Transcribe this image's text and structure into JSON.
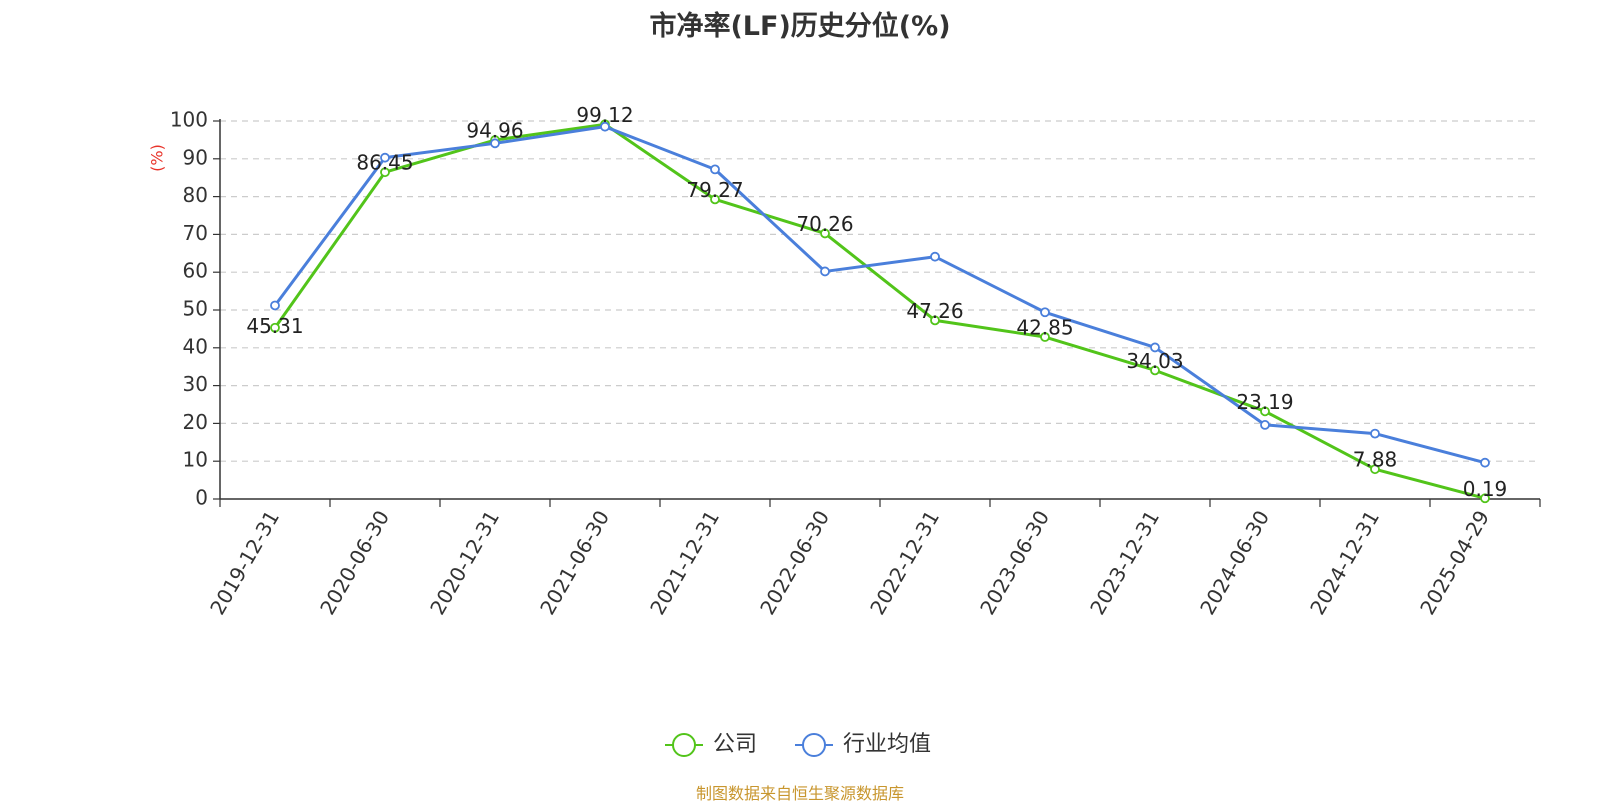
{
  "chart_data": {
    "type": "line",
    "title": "市净率(LF)历史分位(%)",
    "ylabel": "(%)",
    "xlabel": "",
    "ylim": [
      0,
      100
    ],
    "yticks": [
      0,
      10,
      20,
      30,
      40,
      50,
      60,
      70,
      80,
      90,
      100
    ],
    "grid": true,
    "legend_position": "bottom-center",
    "categories": [
      "2019-12-31",
      "2020-06-30",
      "2020-12-31",
      "2021-06-30",
      "2021-12-31",
      "2022-06-30",
      "2022-12-31",
      "2023-06-30",
      "2023-12-31",
      "2024-06-30",
      "2024-12-31",
      "2025-04-29"
    ],
    "series": [
      {
        "name": "公司",
        "color": "#52c41a",
        "labeled": true,
        "values": [
          45.31,
          86.45,
          94.96,
          99.12,
          79.27,
          70.26,
          47.26,
          42.85,
          34.03,
          23.19,
          7.88,
          0.19
        ]
      },
      {
        "name": "行业均值",
        "color": "#4a7fdb",
        "labeled": false,
        "values": [
          51.2,
          90.3,
          94.1,
          98.5,
          87.2,
          60.2,
          64.1,
          49.4,
          40.1,
          19.6,
          17.3,
          9.6
        ]
      }
    ]
  },
  "source": "制图数据来自恒生聚源数据库",
  "colors": {
    "axis": "#333333",
    "grid": "#cccccc",
    "ylabel": "#e8332a",
    "source": "#c8962e"
  }
}
